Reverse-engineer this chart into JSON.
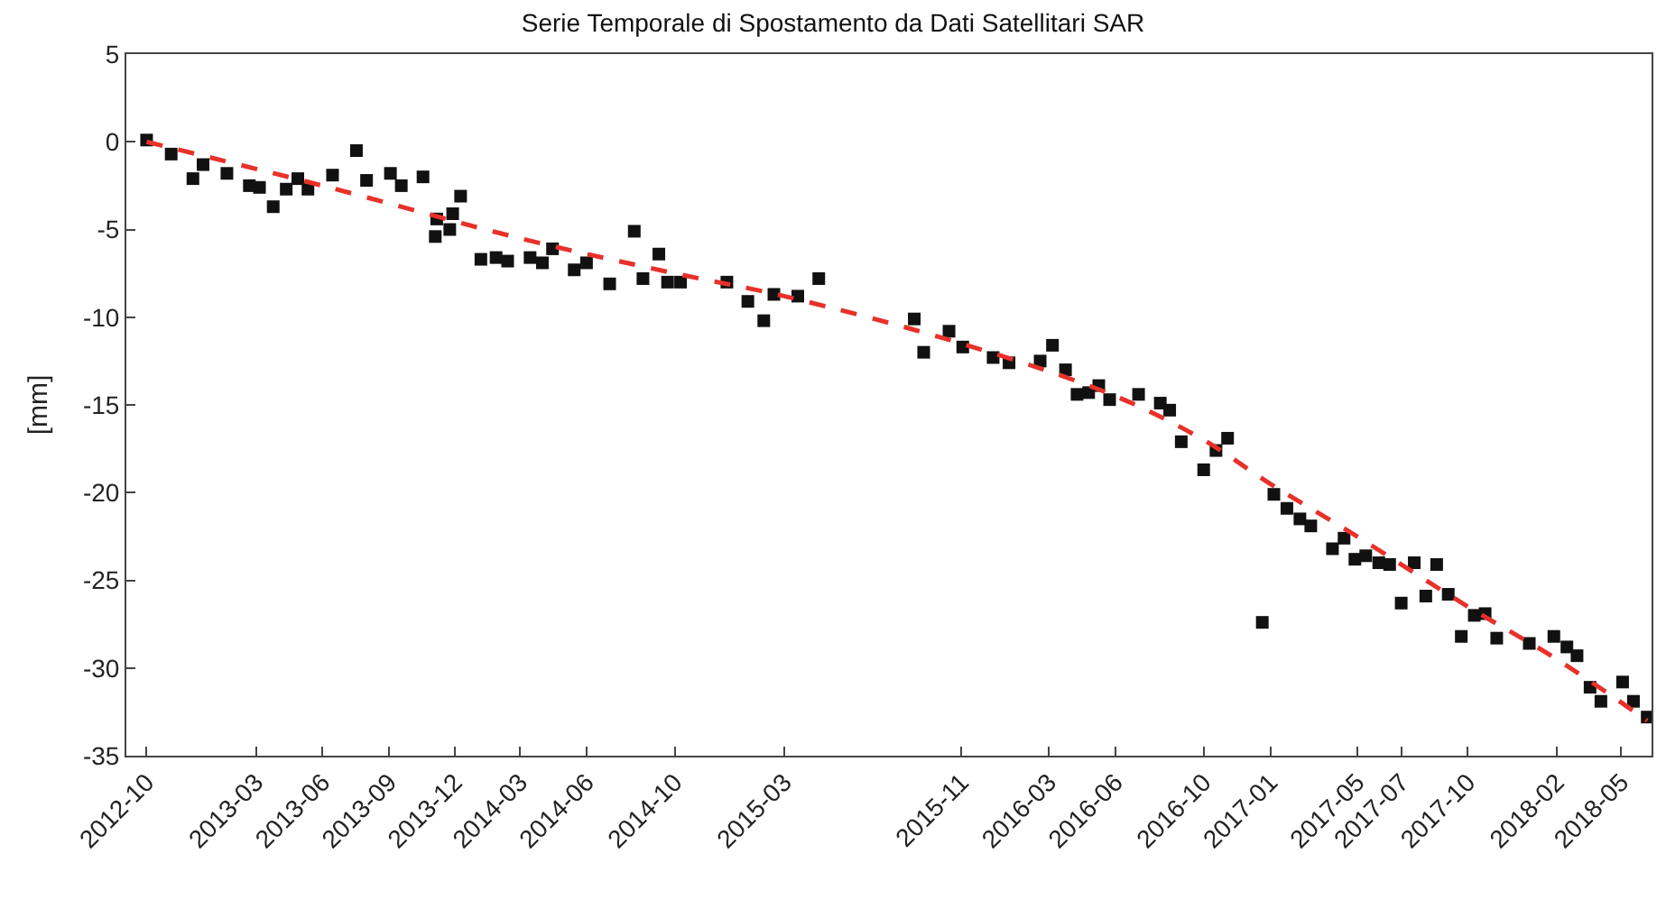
{
  "chart_data": {
    "type": "scatter",
    "title": "Serie Temporale di Spostamento da Dati Satellitari SAR",
    "ylabel": "[mm]",
    "xlim": [
      "2012-09-03",
      "2018-06-12"
    ],
    "ylim": [
      -35,
      5
    ],
    "yticks": [
      -35,
      -30,
      -25,
      -20,
      -15,
      -10,
      -5,
      0,
      5
    ],
    "xticks": [
      {
        "value": "2012-10-01",
        "label": "2012-10"
      },
      {
        "value": "2013-03-01",
        "label": "2013-03"
      },
      {
        "value": "2013-06-01",
        "label": "2013-06"
      },
      {
        "value": "2013-09-01",
        "label": "2013-09"
      },
      {
        "value": "2013-12-01",
        "label": "2013-12"
      },
      {
        "value": "2014-03-01",
        "label": "2014-03"
      },
      {
        "value": "2014-06-01",
        "label": "2014-06"
      },
      {
        "value": "2014-10-01",
        "label": "2014-10"
      },
      {
        "value": "2015-03-01",
        "label": "2015-03"
      },
      {
        "value": "2015-11-01",
        "label": "2015-11"
      },
      {
        "value": "2016-03-01",
        "label": "2016-03"
      },
      {
        "value": "2016-06-01",
        "label": "2016-06"
      },
      {
        "value": "2016-10-01",
        "label": "2016-10"
      },
      {
        "value": "2017-01-01",
        "label": "2017-01"
      },
      {
        "value": "2017-05-01",
        "label": "2017-05"
      },
      {
        "value": "2017-07-01",
        "label": "2017-07"
      },
      {
        "value": "2017-10-01",
        "label": "2017-10"
      },
      {
        "value": "2018-02-01",
        "label": "2018-02"
      },
      {
        "value": "2018-05-01",
        "label": "2018-05"
      }
    ],
    "series": [
      {
        "marker": "square",
        "color": "#111111",
        "x": [
          "2012-10-01",
          "2012-11-04",
          "2012-12-04",
          "2012-12-18",
          "2013-01-20",
          "2013-02-20",
          "2013-03-06",
          "2013-03-25",
          "2013-04-12",
          "2013-04-28",
          "2013-05-12",
          "2013-06-15",
          "2013-07-18",
          "2013-08-01",
          "2013-09-03",
          "2013-09-18",
          "2013-10-18",
          "2013-11-06",
          "2013-11-04",
          "2013-11-24",
          "2013-11-28",
          "2013-12-09",
          "2014-01-06",
          "2014-01-27",
          "2014-02-12",
          "2014-03-15",
          "2014-04-01",
          "2014-04-15",
          "2014-05-15",
          "2014-06-01",
          "2014-07-03",
          "2014-08-06",
          "2014-08-18",
          "2014-09-09",
          "2014-09-21",
          "2014-10-09",
          "2014-12-12",
          "2015-01-10",
          "2015-02-01",
          "2015-02-15",
          "2015-03-20",
          "2015-04-18",
          "2015-08-28",
          "2015-09-10",
          "2015-10-15",
          "2015-11-03",
          "2015-12-15",
          "2016-01-06",
          "2016-02-18",
          "2016-03-06",
          "2016-03-24",
          "2016-04-09",
          "2016-04-25",
          "2016-05-09",
          "2016-05-24",
          "2016-07-03",
          "2016-08-02",
          "2016-08-15",
          "2016-08-31",
          "2016-10-01",
          "2016-10-18",
          "2016-11-03",
          "2016-12-21",
          "2017-01-06",
          "2017-01-24",
          "2017-02-11",
          "2017-02-26",
          "2017-03-28",
          "2017-04-13",
          "2017-04-28",
          "2017-05-13",
          "2017-05-31",
          "2017-06-15",
          "2017-07-01",
          "2017-07-19",
          "2017-08-04",
          "2017-08-19",
          "2017-09-04",
          "2017-09-22",
          "2017-10-10",
          "2017-10-25",
          "2017-11-10",
          "2017-12-25",
          "2018-01-28",
          "2018-02-15",
          "2018-03-01",
          "2018-03-19",
          "2018-04-03",
          "2018-05-03",
          "2018-05-18",
          "2018-06-06"
        ],
        "values": [
          0.1,
          -0.7,
          -2.1,
          -1.3,
          -1.8,
          -2.5,
          -2.6,
          -3.7,
          -2.7,
          -2.1,
          -2.7,
          -1.9,
          -0.5,
          -2.2,
          -1.8,
          -2.5,
          -2.0,
          -4.4,
          -5.4,
          -5.0,
          -4.1,
          -3.1,
          -6.7,
          -6.6,
          -6.8,
          -6.6,
          -6.9,
          -6.1,
          -7.3,
          -6.9,
          -8.1,
          -5.1,
          -7.8,
          -6.4,
          -8.0,
          -8.0,
          -8.0,
          -9.1,
          -10.2,
          -8.7,
          -8.8,
          -7.8,
          -10.1,
          -12.0,
          -10.8,
          -11.7,
          -12.3,
          -12.6,
          -12.5,
          -11.6,
          -13.0,
          -14.4,
          -14.3,
          -13.9,
          -14.7,
          -14.4,
          -14.9,
          -15.3,
          -17.1,
          -18.7,
          -17.6,
          -16.9,
          -27.4,
          -20.1,
          -20.9,
          -21.5,
          -21.9,
          -23.2,
          -22.6,
          -23.8,
          -23.6,
          -24.0,
          -24.1,
          -26.3,
          -24.0,
          -25.9,
          -24.1,
          -25.8,
          -28.2,
          -27.0,
          -26.9,
          -28.3,
          -28.6,
          -28.2,
          -28.8,
          -29.3,
          -31.1,
          -31.9,
          -30.8,
          -31.9,
          -32.8
        ]
      },
      {
        "type": "line",
        "marker": "none",
        "color": "#e8312a",
        "line_style": "dashed",
        "x": [
          "2012-10-01",
          "2013-06-01",
          "2014-03-01",
          "2014-10-01",
          "2015-03-01",
          "2015-11-01",
          "2016-06-01",
          "2016-10-01",
          "2017-01-01",
          "2017-05-01",
          "2017-10-01",
          "2018-02-01",
          "2018-06-06"
        ],
        "values": [
          0,
          -2.5,
          -5.5,
          -7.5,
          -8.8,
          -11.5,
          -14.5,
          -17,
          -19.5,
          -22.5,
          -26.5,
          -29.5,
          -33
        ]
      }
    ]
  }
}
